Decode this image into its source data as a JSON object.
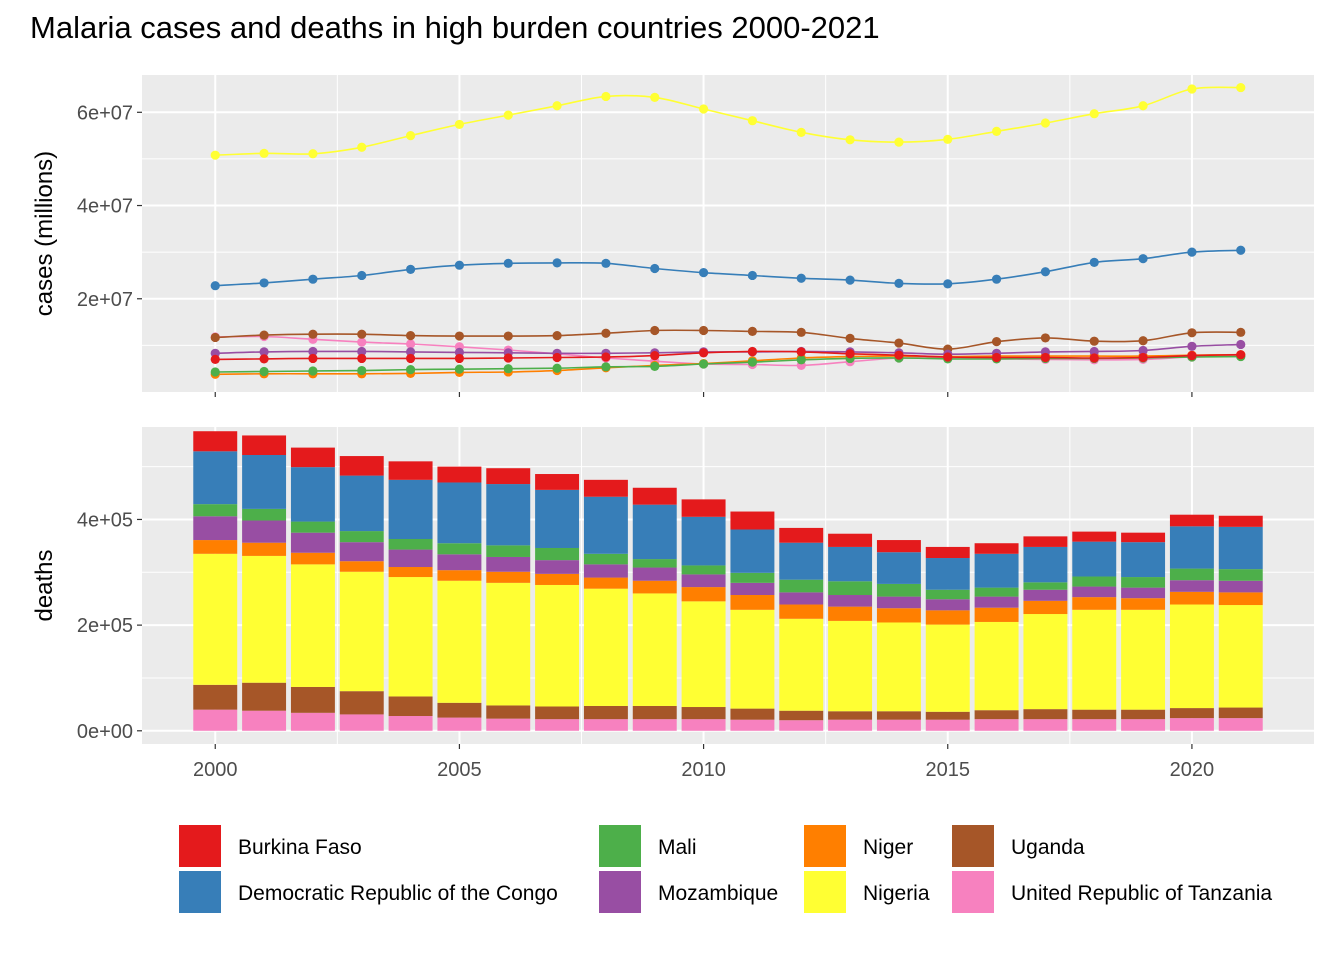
{
  "chart_data": {
    "title": "Malaria cases and deaths in high burden countries 2000-2021",
    "x": [
      2000,
      2001,
      2002,
      2003,
      2004,
      2005,
      2006,
      2007,
      2008,
      2009,
      2010,
      2011,
      2012,
      2013,
      2014,
      2015,
      2016,
      2017,
      2018,
      2019,
      2020,
      2021
    ],
    "x_ticks": [
      2000,
      2005,
      2010,
      2015,
      2020
    ],
    "legend_position": "bottom",
    "grid": true,
    "countries": [
      {
        "name": "Burkina Faso",
        "color": "#E41A1C"
      },
      {
        "name": "Democratic Republic of the Congo",
        "color": "#377EB8"
      },
      {
        "name": "Mali",
        "color": "#4DAF4A"
      },
      {
        "name": "Mozambique",
        "color": "#984EA3"
      },
      {
        "name": "Niger",
        "color": "#FF7F00"
      },
      {
        "name": "Nigeria",
        "color": "#FFFF33"
      },
      {
        "name": "Uganda",
        "color": "#A65628"
      },
      {
        "name": "United Republic of Tanzania",
        "color": "#F781BF"
      }
    ],
    "cases_panel": {
      "type": "line",
      "ylabel": "cases (millions)",
      "ylim": [
        0,
        68000000
      ],
      "y_ticks": [
        {
          "v": 20000000,
          "label": "2e+07"
        },
        {
          "v": 40000000,
          "label": "4e+07"
        },
        {
          "v": 60000000,
          "label": "6e+07"
        }
      ],
      "series": [
        {
          "name": "Burkina Faso",
          "values": [
            7000000,
            7100000,
            7200000,
            7200000,
            7200000,
            7200000,
            7300000,
            7400000,
            7500000,
            7800000,
            8400000,
            8700000,
            8600000,
            8200000,
            7900000,
            7500000,
            7400000,
            7400000,
            7300000,
            7400000,
            7800000,
            8000000
          ]
        },
        {
          "name": "Democratic Republic of the Congo",
          "values": [
            22800000,
            23400000,
            24200000,
            25000000,
            26300000,
            27200000,
            27600000,
            27700000,
            27600000,
            26500000,
            25600000,
            25000000,
            24400000,
            24000000,
            23300000,
            23200000,
            24200000,
            25800000,
            27800000,
            28600000,
            30000000,
            30400000
          ]
        },
        {
          "name": "Mali",
          "values": [
            4300000,
            4400000,
            4500000,
            4600000,
            4800000,
            4900000,
            5000000,
            5100000,
            5400000,
            5500000,
            6000000,
            6400000,
            6900000,
            7200000,
            7300000,
            7100000,
            7100000,
            7200000,
            7200000,
            7300000,
            7500000,
            7600000
          ]
        },
        {
          "name": "Mozambique",
          "values": [
            8300000,
            8600000,
            8700000,
            8700000,
            8600000,
            8500000,
            8400000,
            8300000,
            8300000,
            8400000,
            8600000,
            8600000,
            8700000,
            8600000,
            8400000,
            8100000,
            8300000,
            8600000,
            8700000,
            8900000,
            9800000,
            10200000
          ]
        },
        {
          "name": "Niger",
          "values": [
            3800000,
            3900000,
            3900000,
            3900000,
            4000000,
            4200000,
            4300000,
            4600000,
            5200000,
            5700000,
            6100000,
            6700000,
            7300000,
            7600000,
            7700000,
            7600000,
            7700000,
            7700000,
            7700000,
            7700000,
            7900000,
            8000000
          ]
        },
        {
          "name": "Nigeria",
          "values": [
            50800000,
            51200000,
            51100000,
            52500000,
            55000000,
            57400000,
            59400000,
            61400000,
            63400000,
            63200000,
            60700000,
            58200000,
            55700000,
            54100000,
            53600000,
            54200000,
            55900000,
            57700000,
            59700000,
            61400000,
            65000000,
            65300000
          ]
        },
        {
          "name": "Uganda",
          "values": [
            11700000,
            12200000,
            12400000,
            12400000,
            12100000,
            12000000,
            12000000,
            12100000,
            12600000,
            13200000,
            13200000,
            13000000,
            12800000,
            11500000,
            10500000,
            9200000,
            10800000,
            11600000,
            10900000,
            11000000,
            12700000,
            12800000
          ]
        },
        {
          "name": "United Republic of Tanzania",
          "values": [
            11800000,
            11900000,
            11300000,
            10700000,
            10300000,
            9700000,
            9000000,
            8200000,
            7300000,
            6600000,
            6000000,
            5900000,
            5700000,
            6500000,
            7300000,
            7300000,
            7100000,
            7000000,
            6900000,
            7000000,
            7500000,
            7700000
          ]
        }
      ]
    },
    "deaths_panel": {
      "type": "bar",
      "stacked": true,
      "ylabel": "deaths",
      "ylim": [
        -25000,
        575000
      ],
      "y_ticks": [
        {
          "v": 0,
          "label": "0e+00"
        },
        {
          "v": 200000,
          "label": "2e+05"
        },
        {
          "v": 400000,
          "label": "4e+05"
        }
      ],
      "series": [
        {
          "name": "United Republic of Tanzania",
          "values": [
            40000,
            38000,
            34000,
            31000,
            28000,
            25000,
            23000,
            22000,
            22000,
            22000,
            22000,
            21000,
            20000,
            21000,
            21000,
            21000,
            22000,
            22000,
            22000,
            22000,
            24000,
            24000
          ]
        },
        {
          "name": "Uganda",
          "values": [
            47000,
            53000,
            49000,
            44000,
            37000,
            28000,
            25000,
            24000,
            25000,
            25000,
            23000,
            21000,
            18000,
            16000,
            16000,
            15000,
            17000,
            19000,
            18000,
            18000,
            19000,
            20000
          ]
        },
        {
          "name": "Nigeria",
          "values": [
            248000,
            240000,
            232000,
            226000,
            226000,
            231000,
            232000,
            230000,
            222000,
            213000,
            200000,
            187000,
            174000,
            171000,
            168000,
            165000,
            167000,
            180000,
            189000,
            189000,
            196000,
            194000
          ]
        },
        {
          "name": "Niger",
          "values": [
            26000,
            25000,
            22000,
            20000,
            19000,
            20000,
            21000,
            21000,
            21000,
            24000,
            27000,
            28000,
            27000,
            27000,
            27000,
            27000,
            27000,
            25000,
            24000,
            22000,
            24000,
            24000
          ]
        },
        {
          "name": "Mozambique",
          "values": [
            45000,
            42000,
            38000,
            36000,
            33000,
            30000,
            28000,
            26000,
            25000,
            25000,
            24000,
            23000,
            23000,
            22000,
            22000,
            21000,
            21000,
            21000,
            20000,
            20000,
            22000,
            22000
          ]
        },
        {
          "name": "Mali",
          "values": [
            23000,
            22000,
            21000,
            21000,
            20000,
            21000,
            22000,
            23000,
            20000,
            16000,
            17000,
            19000,
            24000,
            26000,
            24000,
            18000,
            17000,
            14000,
            19000,
            20000,
            22000,
            22000
          ]
        },
        {
          "name": "Democratic Republic of the Congo",
          "values": [
            100000,
            102000,
            103000,
            105000,
            112000,
            115000,
            116000,
            110000,
            108000,
            103000,
            92000,
            82000,
            70000,
            65000,
            60000,
            60000,
            64000,
            67000,
            66000,
            66000,
            80000,
            80000
          ]
        },
        {
          "name": "Burkina Faso",
          "values": [
            38000,
            37000,
            37000,
            37000,
            35000,
            30000,
            30000,
            30000,
            32000,
            32000,
            33000,
            34000,
            28000,
            25000,
            23000,
            21000,
            20000,
            20000,
            19000,
            18000,
            22000,
            21000
          ]
        }
      ]
    }
  }
}
